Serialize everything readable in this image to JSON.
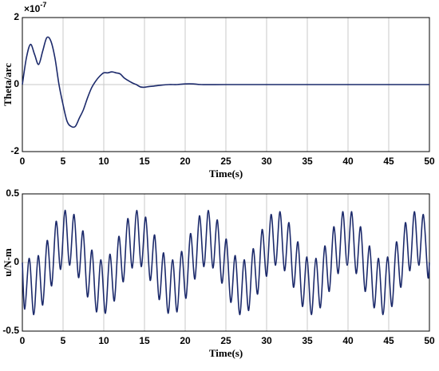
{
  "chart_data": [
    {
      "type": "line",
      "xlabel": "Time(s)",
      "ylabel": "Theta/arc",
      "exponent": {
        "base": "×10",
        "power": "-7"
      },
      "xlim": [
        0,
        50
      ],
      "xticks": [
        0,
        5,
        10,
        15,
        20,
        25,
        30,
        35,
        40,
        45,
        50
      ],
      "ylim": [
        -2,
        2
      ],
      "yticks": [
        -2,
        0,
        2
      ],
      "grid": true,
      "series": [
        {
          "color": "#1c2a6b",
          "x": [
            0,
            0.5,
            1,
            1.5,
            2,
            2.5,
            3,
            3.5,
            4,
            4.5,
            5,
            5.5,
            6,
            6.5,
            7,
            7.5,
            8,
            8.5,
            9,
            9.5,
            10,
            10.5,
            11,
            11.5,
            12,
            12.5,
            13,
            13.5,
            14,
            14.5,
            15,
            15.5,
            16,
            17,
            18,
            19,
            20,
            21,
            22,
            25,
            30,
            35,
            40,
            45,
            50
          ],
          "values": [
            0,
            0.8,
            1.2,
            0.9,
            0.6,
            1.0,
            1.4,
            1.3,
            0.8,
            0,
            -0.6,
            -1.1,
            -1.25,
            -1.25,
            -1.0,
            -0.75,
            -0.4,
            -0.1,
            0.1,
            0.25,
            0.35,
            0.35,
            0.38,
            0.35,
            0.32,
            0.2,
            0.12,
            0.05,
            0,
            -0.07,
            -0.08,
            -0.06,
            -0.05,
            -0.02,
            0,
            0,
            0.02,
            0.02,
            0,
            0,
            0,
            0,
            0,
            0,
            0
          ]
        }
      ]
    },
    {
      "type": "line",
      "xlabel": "Time(s)",
      "ylabel": "u/N-m",
      "xlim": [
        0,
        50
      ],
      "xticks": [
        0,
        5,
        10,
        15,
        20,
        25,
        30,
        35,
        40,
        45,
        50
      ],
      "ylim": [
        -0.5,
        0.5
      ],
      "yticks": [
        -0.5,
        0,
        0.5
      ],
      "grid": true,
      "series": [
        {
          "color": "#1c2a6b",
          "x": [
            0,
            0.3,
            0.85,
            1.4,
            1.95,
            2.5,
            3.05,
            3.6,
            4.15,
            4.7,
            5.25,
            5.8,
            6.35,
            6.9,
            7.45,
            8,
            8.55,
            9.1,
            9.65,
            10.2,
            10.75,
            11.3,
            11.85,
            12.4,
            12.95,
            13.5,
            14.05,
            14.6,
            15.15,
            15.7,
            16.25,
            16.8,
            17.35,
            17.9,
            18.45,
            19,
            19.55,
            20.1,
            20.65,
            21.2,
            21.75,
            22.3,
            22.85,
            23.4,
            23.95,
            24.5,
            25.05,
            25.6,
            26.15,
            26.7,
            27.25,
            27.8,
            28.35,
            28.9,
            29.45,
            30,
            30.55,
            31.1,
            31.65,
            32.2,
            32.75,
            33.3,
            33.85,
            34.4,
            34.95,
            35.5,
            36.05,
            36.6,
            37.15,
            37.7,
            38.25,
            38.8,
            39.35,
            39.9,
            40.45,
            41,
            41.55,
            42.1,
            42.65,
            43.2,
            43.75,
            44.3,
            44.85,
            45.4,
            45.95,
            46.5,
            47.05,
            47.6,
            48.15,
            48.7,
            49.25,
            49.8,
            50
          ],
          "values": [
            0,
            -0.34,
            0.03,
            -0.38,
            0.05,
            -0.31,
            0.16,
            -0.17,
            0.3,
            -0.05,
            0.38,
            -0.02,
            0.35,
            -0.11,
            0.23,
            -0.25,
            0.09,
            -0.36,
            0.02,
            -0.37,
            0.06,
            -0.28,
            0.19,
            -0.14,
            0.32,
            -0.04,
            0.38,
            -0.03,
            0.33,
            -0.13,
            0.2,
            -0.27,
            0.07,
            -0.37,
            0.02,
            -0.36,
            0.08,
            -0.26,
            0.21,
            -0.12,
            0.34,
            -0.03,
            0.38,
            -0.04,
            0.31,
            -0.15,
            0.17,
            -0.29,
            0.05,
            -0.38,
            0.02,
            -0.35,
            0.1,
            -0.23,
            0.24,
            -0.1,
            0.35,
            -0.02,
            0.37,
            -0.06,
            0.29,
            -0.18,
            0.15,
            -0.32,
            0.04,
            -0.38,
            0.03,
            -0.33,
            0.12,
            -0.21,
            0.26,
            -0.08,
            0.37,
            -0.02,
            0.37,
            -0.08,
            0.26,
            -0.21,
            0.12,
            -0.33,
            0.03,
            -0.38,
            0.04,
            -0.32,
            0.15,
            -0.18,
            0.29,
            -0.06,
            0.37,
            -0.02,
            0.35,
            -0.1,
            0
          ]
        }
      ]
    }
  ]
}
